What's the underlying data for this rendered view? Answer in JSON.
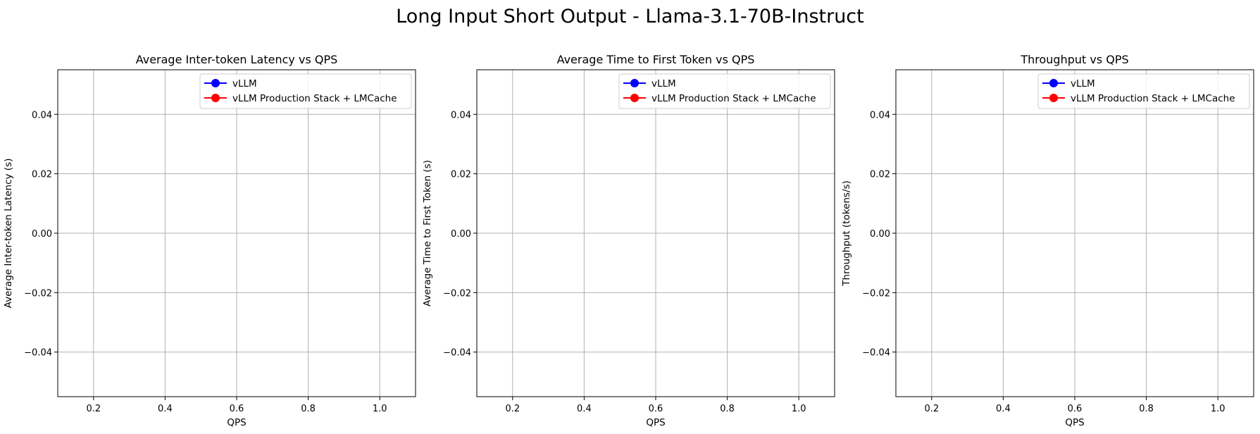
{
  "figure": {
    "suptitle": "Long Input Short Output - Llama-3.1-70B-Instruct"
  },
  "chart_data": [
    {
      "type": "line",
      "title": "Average Inter-token Latency vs QPS",
      "xlabel": "QPS",
      "ylabel": "Average Inter-token Latency (s)",
      "xlim": [
        0.1,
        1.1
      ],
      "ylim": [
        -0.055,
        0.055
      ],
      "xticks": [
        0.2,
        0.4,
        0.6,
        0.8,
        1.0
      ],
      "xtick_labels": [
        "0.2",
        "0.4",
        "0.6",
        "0.8",
        "1.0"
      ],
      "yticks": [
        -0.04,
        -0.02,
        0.0,
        0.02,
        0.04
      ],
      "ytick_labels": [
        "−0.04",
        "−0.02",
        "0.00",
        "0.02",
        "0.04"
      ],
      "grid": true,
      "legend_position": "top-right",
      "series": [
        {
          "name": "vLLM",
          "color": "#0000ff",
          "marker": "circle",
          "x": [],
          "y": []
        },
        {
          "name": "vLLM Production Stack + LMCache",
          "color": "#ff0000",
          "marker": "circle",
          "x": [],
          "y": []
        }
      ]
    },
    {
      "type": "line",
      "title": "Average Time to First Token vs QPS",
      "xlabel": "QPS",
      "ylabel": "Average Time to First Token (s)",
      "xlim": [
        0.1,
        1.1
      ],
      "ylim": [
        -0.055,
        0.055
      ],
      "xticks": [
        0.2,
        0.4,
        0.6,
        0.8,
        1.0
      ],
      "xtick_labels": [
        "0.2",
        "0.4",
        "0.6",
        "0.8",
        "1.0"
      ],
      "yticks": [
        -0.04,
        -0.02,
        0.0,
        0.02,
        0.04
      ],
      "ytick_labels": [
        "−0.04",
        "−0.02",
        "0.00",
        "0.02",
        "0.04"
      ],
      "grid": true,
      "legend_position": "top-right",
      "series": [
        {
          "name": "vLLM",
          "color": "#0000ff",
          "marker": "circle",
          "x": [],
          "y": []
        },
        {
          "name": "vLLM Production Stack + LMCache",
          "color": "#ff0000",
          "marker": "circle",
          "x": [],
          "y": []
        }
      ]
    },
    {
      "type": "line",
      "title": "Throughput vs QPS",
      "xlabel": "QPS",
      "ylabel": "Throughput (tokens/s)",
      "xlim": [
        0.1,
        1.1
      ],
      "ylim": [
        -0.055,
        0.055
      ],
      "xticks": [
        0.2,
        0.4,
        0.6,
        0.8,
        1.0
      ],
      "xtick_labels": [
        "0.2",
        "0.4",
        "0.6",
        "0.8",
        "1.0"
      ],
      "yticks": [
        -0.04,
        -0.02,
        0.0,
        0.02,
        0.04
      ],
      "ytick_labels": [
        "−0.04",
        "−0.02",
        "0.00",
        "0.02",
        "0.04"
      ],
      "grid": true,
      "legend_position": "top-right",
      "series": [
        {
          "name": "vLLM",
          "color": "#0000ff",
          "marker": "circle",
          "x": [],
          "y": []
        },
        {
          "name": "vLLM Production Stack + LMCache",
          "color": "#ff0000",
          "marker": "circle",
          "x": [],
          "y": []
        }
      ]
    }
  ]
}
